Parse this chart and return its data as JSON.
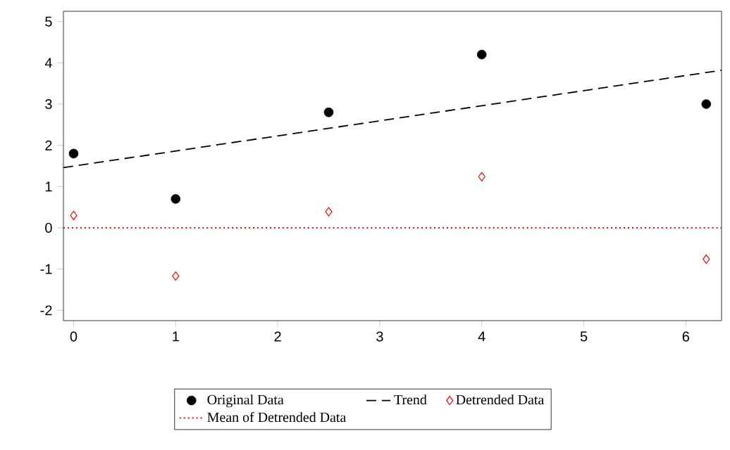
{
  "chart_data": {
    "type": "scatter",
    "xlim": [
      -0.1,
      6.35
    ],
    "ylim": [
      -2.25,
      5.25
    ],
    "xticks": [
      0,
      1,
      2,
      3,
      4,
      5,
      6
    ],
    "yticks": [
      -2,
      -1,
      0,
      1,
      2,
      3,
      4,
      5
    ],
    "grid": false,
    "legend": "bottom",
    "series": [
      {
        "name": "Original Data",
        "marker": "circle",
        "color": "#000000",
        "x": [
          0,
          1,
          2.5,
          4,
          6.2
        ],
        "values": [
          1.8,
          0.7,
          2.8,
          4.2,
          3.0
        ]
      },
      {
        "name": "Trend",
        "type": "line",
        "marker": "none",
        "line_style": "dashed",
        "color": "#000000",
        "x": [
          -0.1,
          6.35
        ],
        "values": [
          1.46,
          3.82
        ]
      },
      {
        "name": "Detrended Data",
        "marker": "diamond",
        "color": "#ff0000",
        "x": [
          0,
          1,
          2.5,
          4,
          6.2
        ],
        "values": [
          0.3,
          -1.17,
          0.39,
          1.24,
          -0.76
        ]
      }
    ],
    "ref_lines": [
      {
        "axis": "y",
        "value": 0,
        "label": "Mean of Detrended Data",
        "color": "#ff0000",
        "line_style": "dotted"
      }
    ]
  }
}
